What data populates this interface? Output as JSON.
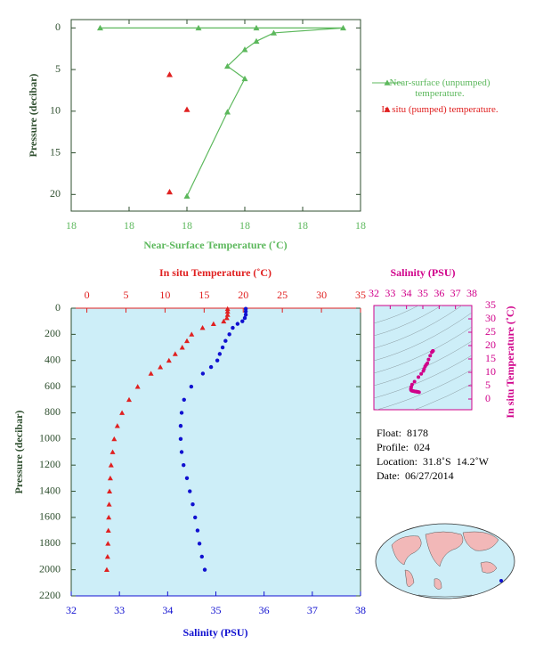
{
  "chart_data": [
    {
      "type": "line",
      "x_label": "Near-Surface Temperature (˚C)",
      "y_label": "Pressure (decibar)",
      "xlim": [
        17.7,
        18.2
      ],
      "xticks": [
        {
          "value": 17.7,
          "label": "18"
        },
        {
          "value": 17.8,
          "label": "18"
        },
        {
          "value": 17.9,
          "label": "18"
        },
        {
          "value": 18.0,
          "label": "18"
        },
        {
          "value": 18.1,
          "label": "18"
        },
        {
          "value": 18.2,
          "label": "18"
        }
      ],
      "ylim": [
        -1,
        22
      ],
      "yticks": [
        0,
        5,
        10,
        15,
        20
      ],
      "invert_y": true,
      "series": [
        {
          "name": "Near-surface (unpumped) temperature.",
          "color": "#5cb85c",
          "marker": "triangle",
          "line": true,
          "x": [
            17.75,
            17.92,
            18.02,
            18.17,
            18.05,
            18.02,
            18.0,
            17.97,
            18.0,
            17.97,
            17.9
          ],
          "y": [
            0,
            0,
            0,
            0,
            0.6,
            1.6,
            2.6,
            4.6,
            6.1,
            10.1,
            20.2
          ]
        },
        {
          "name": "In situ (pumped) temperature.",
          "color": "#e02020",
          "marker": "triangle",
          "line": false,
          "x": [
            17.87,
            17.9,
            17.87
          ],
          "y": [
            5.6,
            9.8,
            19.7
          ]
        }
      ]
    },
    {
      "type": "profile",
      "x_label": "Salinity (PSU)",
      "x2_label": "In situ Temperature (˚C)",
      "y_label": "Pressure (decibar)",
      "xlim": [
        32,
        38
      ],
      "xticks": [
        32,
        33,
        34,
        35,
        36,
        37,
        38
      ],
      "x2lim": [
        -2,
        35
      ],
      "x2ticks": [
        0,
        5,
        10,
        15,
        20,
        25,
        30,
        35
      ],
      "ylim": [
        0,
        2200
      ],
      "yticks": [
        0,
        200,
        400,
        600,
        800,
        1000,
        1200,
        1400,
        1600,
        1800,
        2000,
        2200
      ],
      "invert_y": true,
      "y": [
        5,
        25,
        50,
        75,
        100,
        120,
        150,
        200,
        250,
        300,
        350,
        400,
        450,
        500,
        600,
        700,
        800,
        900,
        1000,
        1100,
        1200,
        1300,
        1400,
        1500,
        1600,
        1700,
        1800,
        1900,
        2000
      ],
      "series": [
        {
          "color": "#e02020",
          "marker": "triangle",
          "axis": "x2",
          "values": [
            18.0,
            18.0,
            18.0,
            17.9,
            17.5,
            16.2,
            14.8,
            13.4,
            12.8,
            12.2,
            11.3,
            10.5,
            9.4,
            8.2,
            6.5,
            5.4,
            4.5,
            3.9,
            3.5,
            3.3,
            3.1,
            3.0,
            2.9,
            2.85,
            2.8,
            2.75,
            2.7,
            2.65,
            2.55
          ]
        },
        {
          "color": "#1010d0",
          "marker": "circle",
          "axis": "x",
          "values": [
            35.62,
            35.62,
            35.62,
            35.6,
            35.55,
            35.45,
            35.35,
            35.28,
            35.2,
            35.14,
            35.08,
            35.03,
            34.9,
            34.73,
            34.49,
            34.34,
            34.29,
            34.27,
            34.27,
            34.29,
            34.33,
            34.4,
            34.46,
            34.52,
            34.57,
            34.62,
            34.66,
            34.71,
            34.77
          ]
        }
      ],
      "inset": {
        "title": "Salinity (PSU)",
        "y_label": "In situ Temperature (˚C)",
        "color": "#d0008a",
        "xlim": [
          32,
          38
        ],
        "xticks": [
          32,
          33,
          34,
          35,
          36,
          37,
          38
        ],
        "ylim": [
          -4,
          35
        ],
        "yticks": [
          0,
          5,
          10,
          15,
          20,
          25,
          30,
          35
        ]
      },
      "annotations": [
        "Float:  8178",
        "Profile:  024",
        "Location:  31.8˚S  14.2˚W",
        "Date:  06/27/2014"
      ]
    }
  ]
}
